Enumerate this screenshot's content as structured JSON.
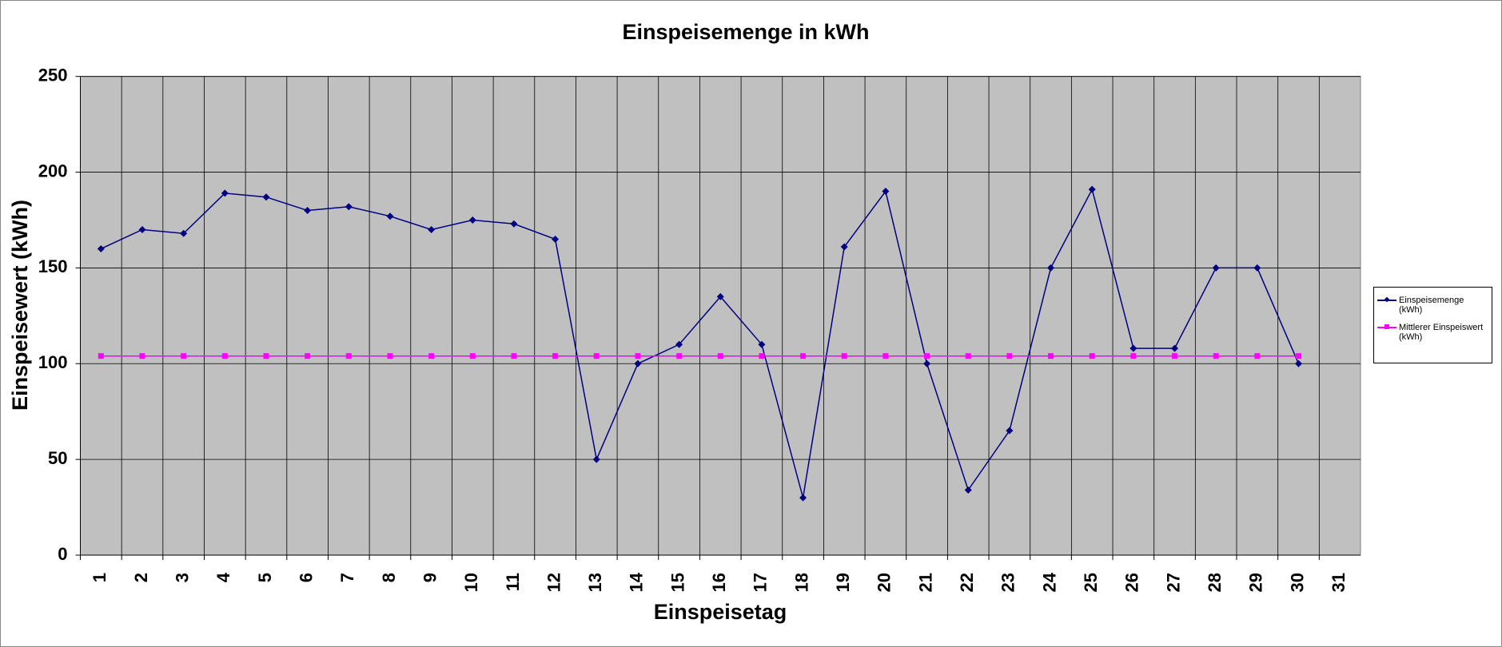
{
  "chart_data": {
    "type": "line",
    "title": "Einspeisemenge in kWh",
    "xlabel": "Einspeisetag",
    "ylabel": "Einspeisewert  (kWh)",
    "categories": [
      "1",
      "2",
      "3",
      "4",
      "5",
      "6",
      "7",
      "8",
      "9",
      "10",
      "11",
      "12",
      "13",
      "14",
      "15",
      "16",
      "17",
      "18",
      "19",
      "20",
      "21",
      "22",
      "23",
      "24",
      "25",
      "26",
      "27",
      "28",
      "29",
      "30",
      "31"
    ],
    "series": [
      {
        "name": "Einspeisemenge (kWh)",
        "color": "#000080",
        "marker": "diamond",
        "values": [
          160,
          170,
          168,
          189,
          187,
          180,
          182,
          177,
          170,
          175,
          173,
          165,
          50,
          100,
          110,
          135,
          110,
          30,
          161,
          190,
          100,
          34,
          65,
          150,
          191,
          108,
          108,
          150,
          150,
          100,
          null
        ]
      },
      {
        "name": "Mittlerer Einspeiswert (kWh)",
        "color": "#ff00ff",
        "marker": "square",
        "values": [
          104,
          104,
          104,
          104,
          104,
          104,
          104,
          104,
          104,
          104,
          104,
          104,
          104,
          104,
          104,
          104,
          104,
          104,
          104,
          104,
          104,
          104,
          104,
          104,
          104,
          104,
          104,
          104,
          104,
          104,
          null
        ]
      }
    ],
    "ylim": [
      0,
      250
    ],
    "yticks": [
      0,
      50,
      100,
      150,
      200,
      250
    ],
    "grid": true,
    "plot_background": "#c0c0c0",
    "legend": "right"
  }
}
